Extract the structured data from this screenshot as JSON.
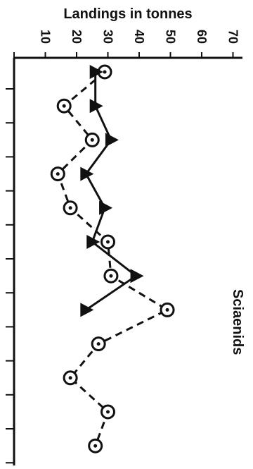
{
  "chart_data": {
    "type": "line",
    "orientation": "rotated-90",
    "ylabel": "Landings in tonnes",
    "ylim": [
      0,
      70
    ],
    "yticks": [
      0,
      10,
      20,
      30,
      40,
      50,
      60,
      70
    ],
    "ytick_labels": [
      "",
      "10",
      "20",
      "30",
      "40",
      "50",
      "60",
      "70"
    ],
    "annotation": "Sciaenids",
    "x_count": 12,
    "series": [
      {
        "marker": "circle-dot",
        "line_style": "dashed",
        "values": [
          29,
          16,
          25,
          14,
          18,
          30,
          31,
          49,
          27,
          18,
          30,
          26
        ]
      },
      {
        "marker": "triangle",
        "line_style": "solid",
        "values": [
          26,
          26,
          31,
          23,
          29,
          25,
          39,
          23
        ]
      }
    ],
    "grid": false,
    "legend": "none"
  }
}
